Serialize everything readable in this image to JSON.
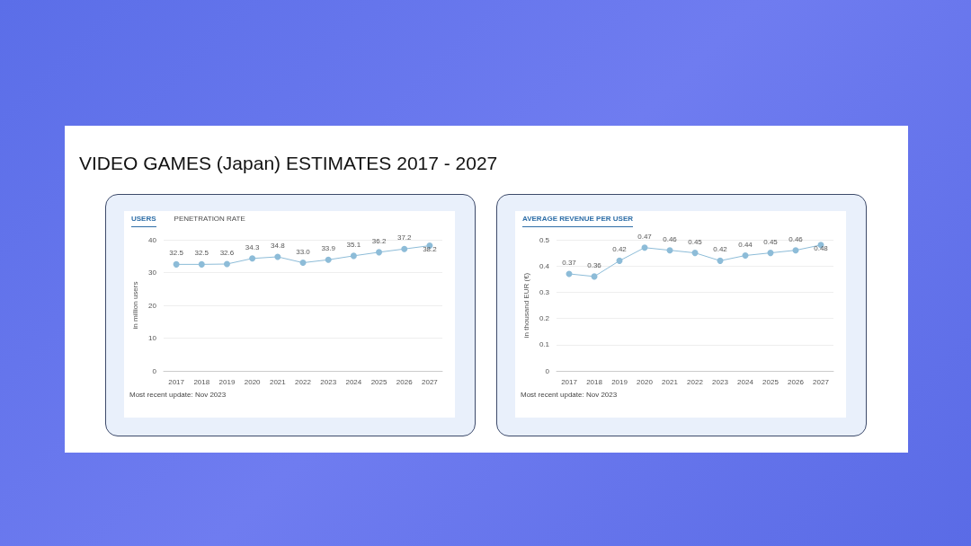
{
  "chart_data": [
    {
      "type": "line",
      "title": "VIDEO GAMES (Japan) ESTIMATES 2017 - 2027",
      "subtitle": "USERS",
      "ylabel": "in million users",
      "categories": [
        "2017",
        "2018",
        "2019",
        "2020",
        "2021",
        "2022",
        "2023",
        "2024",
        "2025",
        "2026",
        "2027"
      ],
      "series": [
        {
          "color": "#8dbcd8",
          "values": [
            32.5,
            32.5,
            32.6,
            34.3,
            34.8,
            33.0,
            33.9,
            35.1,
            36.2,
            37.2,
            38.2
          ],
          "value_labels": [
            "32.5",
            "32.5",
            "32.6",
            "34.3",
            "34.8",
            "33.0",
            "33.9",
            "35.1",
            "36.2",
            "37.2",
            "38.2"
          ]
        }
      ],
      "ylim": [
        0,
        40
      ],
      "yticks": [
        0,
        10,
        20,
        30,
        40
      ],
      "grid": "y",
      "marker": "circle",
      "annotations": [
        "PENETRATION RATE",
        "Most recent update: Nov 2023"
      ]
    },
    {
      "type": "line",
      "title": "AVERAGE REVENUE PER USER",
      "ylabel": "in thousand EUR (€)",
      "categories": [
        "2017",
        "2018",
        "2019",
        "2020",
        "2021",
        "2022",
        "2023",
        "2024",
        "2025",
        "2026",
        "2027"
      ],
      "series": [
        {
          "color": "#8dbcd8",
          "values": [
            0.37,
            0.36,
            0.42,
            0.47,
            0.46,
            0.45,
            0.42,
            0.44,
            0.45,
            0.46,
            0.48
          ]
        }
      ],
      "ylim": [
        0,
        0.5
      ],
      "yticks": [
        0,
        0.1,
        0.2,
        0.3,
        0.4,
        0.5
      ],
      "grid": "y",
      "marker": "circle",
      "data_labels": true,
      "annotations": [
        "Most recent update: Nov 2023"
      ]
    }
  ]
}
